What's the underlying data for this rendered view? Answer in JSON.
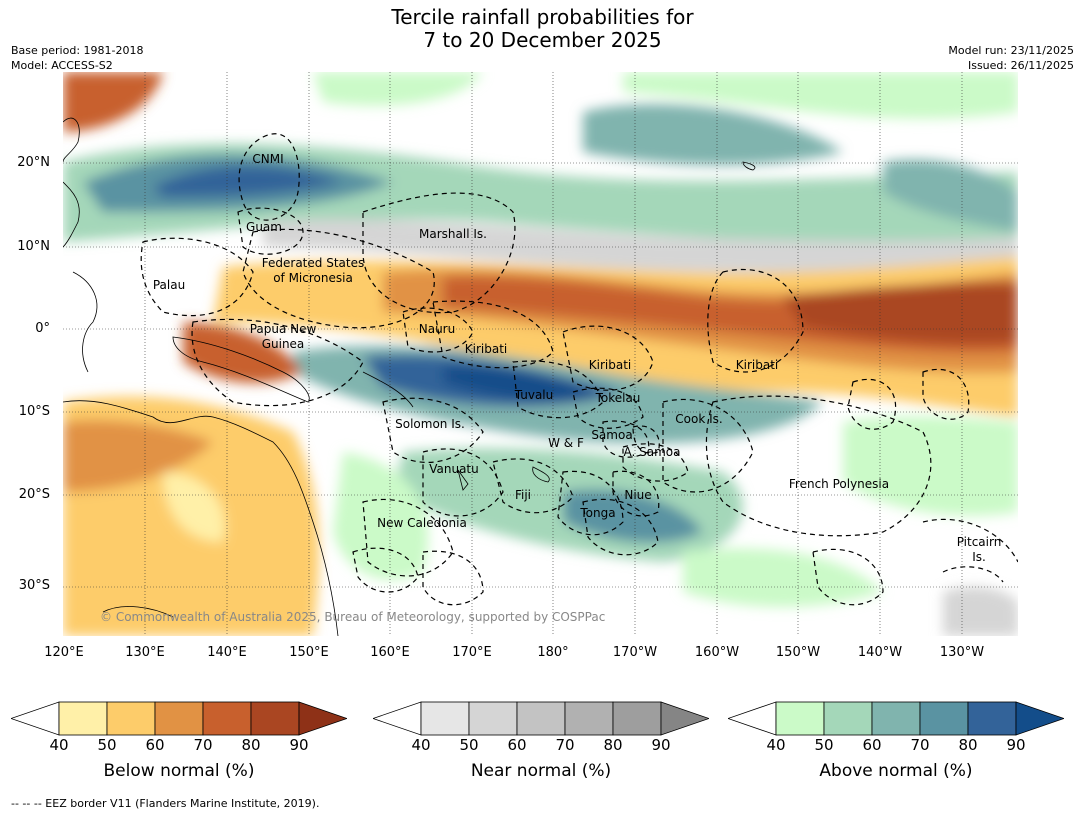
{
  "title_line1": "Tercile rainfall probabilities for",
  "title_line2": "7 to 20 December 2025",
  "base_period": "Base period: 1981-2018",
  "model": "Model: ACCESS-S2",
  "model_run": "Model run: 23/11/2025",
  "issued": "Issued: 26/11/2025",
  "copyright": "© Commonwealth of Australia 2025, Bureau of Meteorology, supported by COSPPac",
  "lat_labels": [
    "20°N",
    "10°N",
    "0°",
    "10°S",
    "20°S",
    "30°S"
  ],
  "lon_labels": [
    "120°E",
    "130°E",
    "140°E",
    "150°E",
    "160°E",
    "170°E",
    "180°",
    "170°W",
    "160°W",
    "150°W",
    "140°W",
    "130°W"
  ],
  "regions": [
    {
      "id": "cnmi",
      "text": "CNMI"
    },
    {
      "id": "guam",
      "text": "Guam"
    },
    {
      "id": "marshall",
      "text": "Marshall Is."
    },
    {
      "id": "fsm1",
      "text": "Federated States"
    },
    {
      "id": "fsm2",
      "text": "of Micronesia"
    },
    {
      "id": "palau",
      "text": "Palau"
    },
    {
      "id": "png1",
      "text": "Papua New"
    },
    {
      "id": "png2",
      "text": "Guinea"
    },
    {
      "id": "nauru",
      "text": "Nauru"
    },
    {
      "id": "kiribati1",
      "text": "Kiribati"
    },
    {
      "id": "kiribati2",
      "text": "Kiribati"
    },
    {
      "id": "kiribati3",
      "text": "Kiribati"
    },
    {
      "id": "tuvalu",
      "text": "Tuvalu"
    },
    {
      "id": "tokelau",
      "text": "Tokelau"
    },
    {
      "id": "solomon",
      "text": "Solomon Is."
    },
    {
      "id": "cook",
      "text": "Cook Is."
    },
    {
      "id": "wf",
      "text": "W & F"
    },
    {
      "id": "samoa",
      "text": "Samoa"
    },
    {
      "id": "asamoa",
      "text": "A. Samoa"
    },
    {
      "id": "vanuatu",
      "text": "Vanuatu"
    },
    {
      "id": "fiji",
      "text": "Fiji"
    },
    {
      "id": "niue",
      "text": "Niue"
    },
    {
      "id": "frpoly",
      "text": "French Polynesia"
    },
    {
      "id": "newcal",
      "text": "New Caledonia"
    },
    {
      "id": "tonga",
      "text": "Tonga"
    },
    {
      "id": "pitcairn1",
      "text": "Pitcairn"
    },
    {
      "id": "pitcairn2",
      "text": "Is."
    }
  ],
  "colorbars": [
    {
      "title": "Below normal (%)",
      "ticks": [
        "40",
        "50",
        "60",
        "70",
        "80",
        "90"
      ],
      "colors": [
        "#fff0a8",
        "#fdcc6a",
        "#e19244",
        "#c8602d",
        "#aa4622",
        "#8e3117"
      ]
    },
    {
      "title": "Near normal (%)",
      "ticks": [
        "40",
        "50",
        "60",
        "70",
        "80",
        "90"
      ],
      "colors": [
        "#e6e6e6",
        "#d5d5d5",
        "#c3c3c3",
        "#b1b1b1",
        "#9e9e9e",
        "#858585"
      ]
    },
    {
      "title": "Above normal (%)",
      "ticks": [
        "40",
        "50",
        "60",
        "70",
        "80",
        "90"
      ],
      "colors": [
        "#cbfac8",
        "#a4d7b9",
        "#80b4ae",
        "#5a93a2",
        "#336399",
        "#134d8a"
      ]
    }
  ],
  "footnote": "--  --  -- EEZ border V11 (Flanders Marine Institute, 2019)."
}
